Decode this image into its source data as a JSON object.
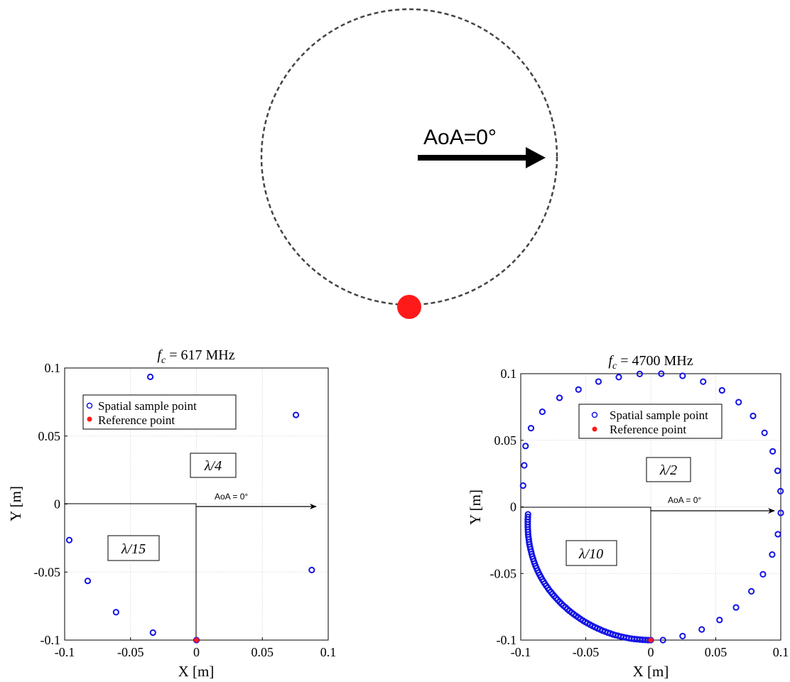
{
  "colors": {
    "sample": "#1414e6",
    "reference": "#ff1a1a",
    "grid": "#d4d4d4",
    "axis": "#000000",
    "dashed_circle": "#444444"
  },
  "schematic": {
    "arrow_label": "AoA=0°"
  },
  "chart_data": [
    {
      "type": "scatter",
      "title": "f_c = 617 MHz",
      "title_main": "f",
      "title_sub": "c",
      "title_rest": " = 617 MHz",
      "xlabel": "X [m]",
      "ylabel": "Y [m]",
      "xlim": [
        -0.1,
        0.1
      ],
      "ylim": [
        -0.1,
        0.1
      ],
      "xticks": [
        -0.1,
        -0.05,
        0,
        0.05,
        0.1
      ],
      "xtick_labels": [
        "-0.1",
        "-0.05",
        "0",
        "0.05",
        "0.1"
      ],
      "yticks": [
        -0.1,
        -0.05,
        0,
        0.05,
        0.1
      ],
      "ytick_labels": [
        "-0.1",
        "-0.05",
        "0",
        "0.05",
        "0.1"
      ],
      "grid": true,
      "legend": [
        "Spatial sample point",
        "Reference point"
      ],
      "legend_position": "top-left",
      "annotations": [
        "λ/4",
        "λ/15",
        "AoA = 0°"
      ],
      "series": [
        {
          "name": "Spatial sample point",
          "points": [
            [
              0,
              -0.1
            ],
            [
              -0.033,
              -0.0945
            ],
            [
              -0.061,
              -0.0795
            ],
            [
              -0.0825,
              -0.0565
            ],
            [
              -0.0965,
              -0.0265
            ],
            [
              -0.035,
              0.0935
            ],
            [
              0.0755,
              0.0655
            ],
            [
              0.0875,
              -0.0485
            ]
          ]
        },
        {
          "name": "Reference point",
          "points": [
            [
              0,
              -0.1
            ]
          ]
        }
      ]
    },
    {
      "type": "scatter",
      "title": "f_c = 4700 MHz",
      "title_main": "f",
      "title_sub": "c",
      "title_rest": " = 4700 MHz",
      "xlabel": "X [m]",
      "ylabel": "Y [m]",
      "xlim": [
        -0.1,
        0.1
      ],
      "ylim": [
        -0.1,
        0.1
      ],
      "xticks": [
        -0.1,
        -0.05,
        0,
        0.05,
        0.1
      ],
      "xtick_labels": [
        "-0.1",
        "-0.05",
        "0",
        "0.05",
        "0.1"
      ],
      "yticks": [
        -0.1,
        -0.05,
        0,
        0.05,
        0.1
      ],
      "ytick_labels": [
        "-0.1",
        "-0.05",
        "0",
        "0.05",
        "0.1"
      ],
      "grid": true,
      "legend": [
        "Spatial sample point",
        "Reference point"
      ],
      "legend_position": "top-center",
      "annotations": [
        "λ/2",
        "λ/10",
        "AoA = 0°"
      ],
      "series": [
        {
          "name": "Spatial sample point",
          "points": [
            [
              0,
              -0.1
            ],
            [
              -0.0021,
              -0.1
            ],
            [
              -0.0042,
              -0.0999
            ],
            [
              -0.0063,
              -0.0998
            ],
            [
              -0.0084,
              -0.0996
            ],
            [
              -0.0105,
              -0.0994
            ],
            [
              -0.0126,
              -0.0992
            ],
            [
              -0.0147,
              -0.0989
            ],
            [
              -0.0168,
              -0.0986
            ],
            [
              -0.0188,
              -0.0982
            ],
            [
              -0.0209,
              -0.0978
            ],
            [
              -0.023,
              -0.0973
            ],
            [
              -0.025,
              -0.0968
            ],
            [
              -0.0271,
              -0.0963
            ],
            [
              -0.0291,
              -0.0957
            ],
            [
              -0.0311,
              -0.095
            ],
            [
              -0.0331,
              -0.0944
            ],
            [
              -0.0351,
              -0.0936
            ],
            [
              -0.0371,
              -0.0929
            ],
            [
              -0.039,
              -0.092
            ],
            [
              -0.041,
              -0.0912
            ],
            [
              -0.0429,
              -0.0903
            ],
            [
              -0.0448,
              -0.0894
            ],
            [
              -0.0467,
              -0.0884
            ],
            [
              -0.0486,
              -0.0874
            ],
            [
              -0.0504,
              -0.0864
            ],
            [
              -0.0522,
              -0.0853
            ],
            [
              -0.054,
              -0.0842
            ],
            [
              -0.0557,
              -0.083
            ],
            [
              -0.0575,
              -0.0818
            ],
            [
              -0.0592,
              -0.0806
            ],
            [
              -0.0608,
              -0.0794
            ],
            [
              -0.0625,
              -0.0781
            ],
            [
              -0.0641,
              -0.0768
            ],
            [
              -0.0656,
              -0.0754
            ],
            [
              -0.0672,
              -0.0741
            ],
            [
              -0.0687,
              -0.0727
            ],
            [
              -0.0701,
              -0.0713
            ],
            [
              -0.0716,
              -0.0698
            ],
            [
              -0.0729,
              -0.0684
            ],
            [
              -0.0743,
              -0.0669
            ],
            [
              -0.0756,
              -0.0654
            ],
            [
              -0.0768,
              -0.0639
            ],
            [
              -0.0781,
              -0.0624
            ],
            [
              -0.0792,
              -0.0608
            ],
            [
              -0.0804,
              -0.0592
            ],
            [
              -0.0815,
              -0.0576
            ],
            [
              -0.0825,
              -0.056
            ],
            [
              -0.0835,
              -0.0544
            ],
            [
              -0.0845,
              -0.0527
            ],
            [
              -0.0854,
              -0.0511
            ],
            [
              -0.0863,
              -0.0494
            ],
            [
              -0.0871,
              -0.0477
            ],
            [
              -0.0879,
              -0.046
            ],
            [
              -0.0886,
              -0.0443
            ],
            [
              -0.0893,
              -0.0425
            ],
            [
              -0.0899,
              -0.0408
            ],
            [
              -0.0905,
              -0.039
            ],
            [
              -0.0911,
              -0.0372
            ],
            [
              -0.0916,
              -0.0354
            ],
            [
              -0.092,
              -0.0336
            ],
            [
              -0.0925,
              -0.0318
            ],
            [
              -0.0929,
              -0.03
            ],
            [
              -0.0933,
              -0.0281
            ],
            [
              -0.0936,
              -0.0263
            ],
            [
              -0.0938,
              -0.0244
            ],
            [
              -0.0941,
              -0.0226
            ],
            [
              -0.0943,
              -0.0207
            ],
            [
              -0.0944,
              -0.0188
            ],
            [
              -0.0945,
              -0.017
            ],
            [
              -0.0946,
              -0.0151
            ],
            [
              -0.0946,
              -0.0132
            ],
            [
              -0.0946,
              -0.0113
            ],
            [
              -0.0946,
              -0.0094
            ],
            [
              -0.0945,
              -0.0075
            ],
            [
              -0.0944,
              -0.0056
            ],
            [
              0.0094,
              -0.1
            ],
            [
              0.0245,
              -0.097
            ],
            [
              0.0392,
              -0.092
            ],
            [
              0.0529,
              -0.0849
            ],
            [
              0.0656,
              -0.0755
            ],
            [
              0.0774,
              -0.0634
            ],
            [
              0.0863,
              -0.0506
            ],
            [
              0.0934,
              -0.0358
            ],
            [
              0.0978,
              -0.0205
            ],
            [
              0.1,
              -0.0045
            ],
            [
              0.0998,
              0.0118
            ],
            [
              0.0976,
              0.0271
            ],
            [
              0.0938,
              0.0417
            ],
            [
              0.0875,
              0.0556
            ],
            [
              0.0787,
              0.0683
            ],
            [
              0.0676,
              0.0786
            ],
            [
              0.0548,
              0.0875
            ],
            [
              0.0403,
              0.094
            ],
            [
              0.0245,
              0.0984
            ],
            [
              0.0081,
              0.1
            ],
            [
              -0.0085,
              0.0998
            ],
            [
              -0.0246,
              0.0974
            ],
            [
              -0.0402,
              0.0941
            ],
            [
              -0.0556,
              0.0881
            ],
            [
              -0.0702,
              0.0819
            ],
            [
              -0.0834,
              0.0714
            ],
            [
              -0.0921,
              0.0591
            ],
            [
              -0.0963,
              0.0457
            ],
            [
              -0.0973,
              0.0312
            ],
            [
              -0.0982,
              0.016
            ]
          ]
        },
        {
          "name": "Reference point",
          "points": [
            [
              0,
              -0.1
            ]
          ]
        }
      ]
    }
  ]
}
